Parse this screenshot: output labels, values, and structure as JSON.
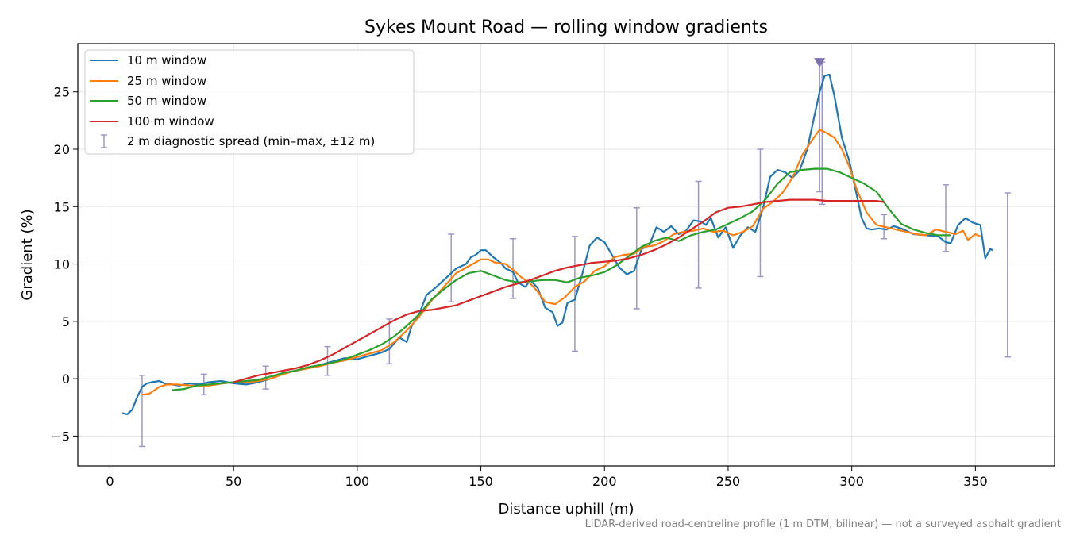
{
  "chart_data": {
    "type": "line",
    "title": "Sykes Mount Road — rolling window gradients",
    "xlabel": "Distance uphill (m)",
    "ylabel": "Gradient (%)",
    "footnote": "LiDAR-derived road-centreline profile (1 m DTM, bilinear) — not a surveyed asphalt gradient",
    "xlim": [
      -13,
      382
    ],
    "ylim": [
      -7.6,
      29.2
    ],
    "x_ticks": [
      0,
      50,
      100,
      150,
      200,
      250,
      300,
      350
    ],
    "y_ticks": [
      -5,
      0,
      5,
      10,
      15,
      20,
      25
    ],
    "grid": true,
    "legend_position": "top-left",
    "series": [
      {
        "name": "10 m window",
        "color": "#1f77b4",
        "x": [
          5,
          7,
          9,
          11,
          13,
          15,
          17,
          20,
          22,
          25,
          28,
          32,
          36,
          40,
          45,
          50,
          55,
          60,
          65,
          70,
          75,
          80,
          85,
          90,
          95,
          100,
          105,
          110,
          113,
          117,
          120,
          122,
          125,
          128,
          132,
          136,
          140,
          144,
          146,
          148,
          150,
          152,
          155,
          158,
          160,
          163,
          165,
          168,
          170,
          173,
          176,
          179,
          181,
          183,
          185,
          188,
          191,
          194,
          197,
          200,
          203,
          206,
          209,
          212,
          215,
          218,
          221,
          224,
          227,
          230,
          233,
          236,
          239,
          241,
          243,
          246,
          249,
          252,
          255,
          258,
          261,
          264,
          267,
          270,
          273,
          276,
          279,
          282,
          285,
          287,
          289,
          291,
          293,
          296,
          299,
          302,
          304,
          306,
          308,
          311,
          314,
          317,
          320,
          325,
          330,
          335,
          338,
          340,
          343,
          346,
          349,
          352,
          354,
          356,
          357
        ],
        "y": [
          -3.0,
          -3.1,
          -2.7,
          -1.6,
          -0.7,
          -0.4,
          -0.3,
          -0.2,
          -0.4,
          -0.5,
          -0.6,
          -0.4,
          -0.5,
          -0.3,
          -0.2,
          -0.4,
          -0.5,
          -0.3,
          0.0,
          0.5,
          0.7,
          0.9,
          1.2,
          1.5,
          1.8,
          1.7,
          2.0,
          2.3,
          2.6,
          3.6,
          3.2,
          4.6,
          5.6,
          7.3,
          8.0,
          8.8,
          9.6,
          10.0,
          10.6,
          10.8,
          11.2,
          11.2,
          10.6,
          10.1,
          9.6,
          9.3,
          8.4,
          8.0,
          8.6,
          7.9,
          6.2,
          5.8,
          4.6,
          4.9,
          6.6,
          6.9,
          9.1,
          11.6,
          12.3,
          11.9,
          10.8,
          9.7,
          9.1,
          9.4,
          11.3,
          11.6,
          13.2,
          12.8,
          13.3,
          12.6,
          12.9,
          13.8,
          13.7,
          13.4,
          14.0,
          12.3,
          13.2,
          11.4,
          12.5,
          13.2,
          12.8,
          14.8,
          17.6,
          18.2,
          18.0,
          17.5,
          18.2,
          20.0,
          23.0,
          25.0,
          26.4,
          26.5,
          24.6,
          21.0,
          19.0,
          16.0,
          14.0,
          13.1,
          13.0,
          13.1,
          13.0,
          13.3,
          13.1,
          12.6,
          12.5,
          12.4,
          11.9,
          11.8,
          13.4,
          14.0,
          13.6,
          13.4,
          10.5,
          11.3,
          11.2
        ]
      },
      {
        "name": "25 m window",
        "color": "#ff7f0e",
        "x": [
          13,
          16,
          18,
          20,
          23,
          27,
          33,
          40,
          46,
          50,
          55,
          60,
          65,
          70,
          75,
          80,
          85,
          90,
          95,
          100,
          105,
          110,
          115,
          120,
          125,
          130,
          135,
          140,
          145,
          150,
          153,
          156,
          160,
          163,
          166,
          170,
          173,
          176,
          180,
          184,
          188,
          192,
          196,
          200,
          204,
          208,
          212,
          216,
          220,
          224,
          228,
          232,
          236,
          240,
          244,
          248,
          252,
          256,
          260,
          264,
          268,
          272,
          276,
          280,
          284,
          287,
          290,
          293,
          296,
          299,
          302,
          306,
          310,
          314,
          318,
          322,
          326,
          330,
          334,
          338,
          342,
          345,
          347,
          350,
          352
        ],
        "y": [
          -1.4,
          -1.3,
          -1.0,
          -0.7,
          -0.5,
          -0.5,
          -0.6,
          -0.6,
          -0.4,
          -0.3,
          -0.3,
          -0.2,
          0.0,
          0.4,
          0.7,
          0.9,
          1.1,
          1.4,
          1.6,
          1.9,
          2.2,
          2.5,
          3.2,
          4.2,
          5.4,
          6.8,
          8.0,
          9.2,
          9.8,
          10.4,
          10.4,
          10.1,
          10.0,
          9.5,
          8.9,
          8.3,
          7.6,
          6.7,
          6.5,
          7.1,
          8.0,
          8.5,
          9.4,
          9.8,
          10.6,
          10.8,
          10.9,
          11.5,
          11.6,
          12.0,
          12.6,
          12.8,
          12.9,
          13.1,
          12.8,
          12.9,
          12.5,
          12.8,
          13.3,
          14.8,
          15.4,
          16.2,
          17.5,
          19.5,
          20.8,
          21.7,
          21.4,
          21.0,
          20.0,
          18.5,
          16.5,
          14.5,
          13.4,
          13.2,
          13.0,
          12.8,
          12.6,
          12.5,
          13.0,
          12.8,
          12.6,
          12.9,
          12.1,
          12.6,
          12.4
        ]
      },
      {
        "name": "50 m window",
        "color": "#2ca02c",
        "x": [
          25,
          30,
          35,
          40,
          45,
          50,
          55,
          60,
          65,
          70,
          75,
          80,
          85,
          90,
          95,
          100,
          105,
          110,
          115,
          120,
          125,
          130,
          135,
          140,
          145,
          150,
          155,
          160,
          165,
          170,
          175,
          180,
          185,
          190,
          195,
          200,
          205,
          210,
          215,
          220,
          225,
          230,
          235,
          240,
          245,
          250,
          255,
          260,
          265,
          270,
          275,
          280,
          285,
          290,
          295,
          300,
          305,
          310,
          315,
          320,
          325,
          330,
          335,
          340
        ],
        "y": [
          -1.0,
          -0.9,
          -0.6,
          -0.5,
          -0.4,
          -0.3,
          -0.2,
          -0.1,
          0.2,
          0.5,
          0.7,
          1.0,
          1.2,
          1.4,
          1.7,
          2.1,
          2.5,
          3.0,
          3.7,
          4.6,
          5.6,
          6.9,
          7.8,
          8.6,
          9.2,
          9.4,
          9.0,
          8.6,
          8.4,
          8.5,
          8.6,
          8.6,
          8.4,
          8.8,
          9.0,
          9.3,
          9.9,
          10.7,
          11.5,
          12.0,
          12.3,
          12.0,
          12.5,
          12.8,
          13.0,
          13.5,
          14.0,
          14.6,
          15.6,
          17.0,
          18.0,
          18.2,
          18.3,
          18.3,
          18.0,
          17.5,
          17.0,
          16.3,
          14.8,
          13.5,
          13.0,
          12.7,
          12.5,
          12.5
        ]
      },
      {
        "name": "100 m window",
        "color": "#d62728",
        "x": [
          50,
          55,
          60,
          65,
          70,
          75,
          80,
          85,
          90,
          95,
          100,
          105,
          110,
          115,
          120,
          125,
          130,
          135,
          140,
          145,
          150,
          155,
          160,
          165,
          170,
          175,
          180,
          185,
          190,
          195,
          200,
          205,
          210,
          215,
          220,
          225,
          230,
          235,
          240,
          245,
          250,
          255,
          260,
          265,
          270,
          275,
          280,
          285,
          290,
          295,
          300,
          305,
          310,
          313
        ],
        "y": [
          -0.3,
          0.0,
          0.3,
          0.5,
          0.7,
          0.9,
          1.2,
          1.6,
          2.1,
          2.7,
          3.3,
          3.9,
          4.5,
          5.1,
          5.6,
          5.9,
          6.0,
          6.2,
          6.4,
          6.8,
          7.2,
          7.6,
          8.0,
          8.3,
          8.6,
          9.0,
          9.4,
          9.7,
          9.9,
          10.1,
          10.2,
          10.3,
          10.5,
          10.8,
          11.2,
          11.7,
          12.3,
          13.0,
          13.7,
          14.5,
          14.9,
          15.0,
          15.2,
          15.4,
          15.5,
          15.6,
          15.6,
          15.6,
          15.5,
          15.5,
          15.5,
          15.5,
          15.5,
          15.4
        ]
      }
    ],
    "error_bars": {
      "name": "2 m diagnostic spread (min–max, ±12 m)",
      "color": "#9d97c4",
      "points": [
        {
          "x": 13,
          "min": -5.9,
          "max": 0.3
        },
        {
          "x": 38,
          "min": -1.4,
          "max": 0.4
        },
        {
          "x": 63,
          "min": -0.9,
          "max": 1.1
        },
        {
          "x": 88,
          "min": 0.3,
          "max": 2.8
        },
        {
          "x": 113,
          "min": 1.3,
          "max": 5.2
        },
        {
          "x": 138,
          "min": 6.7,
          "max": 12.6
        },
        {
          "x": 163,
          "min": 7.0,
          "max": 12.2
        },
        {
          "x": 188,
          "min": 2.4,
          "max": 12.4
        },
        {
          "x": 213,
          "min": 6.1,
          "max": 14.9
        },
        {
          "x": 238,
          "min": 7.9,
          "max": 17.2
        },
        {
          "x": 263,
          "min": 8.9,
          "max": 20.0
        },
        {
          "x": 287,
          "min": 16.3,
          "max": 27.6
        },
        {
          "x": 288,
          "min": 15.2,
          "max": 27.6
        },
        {
          "x": 313,
          "min": 12.2,
          "max": 14.3
        },
        {
          "x": 338,
          "min": 11.1,
          "max": 16.9
        },
        {
          "x": 363,
          "min": 1.9,
          "max": 16.2
        }
      ]
    },
    "peak_marker": {
      "x": 287,
      "y": 27.6,
      "color": "#7f73ad"
    }
  }
}
